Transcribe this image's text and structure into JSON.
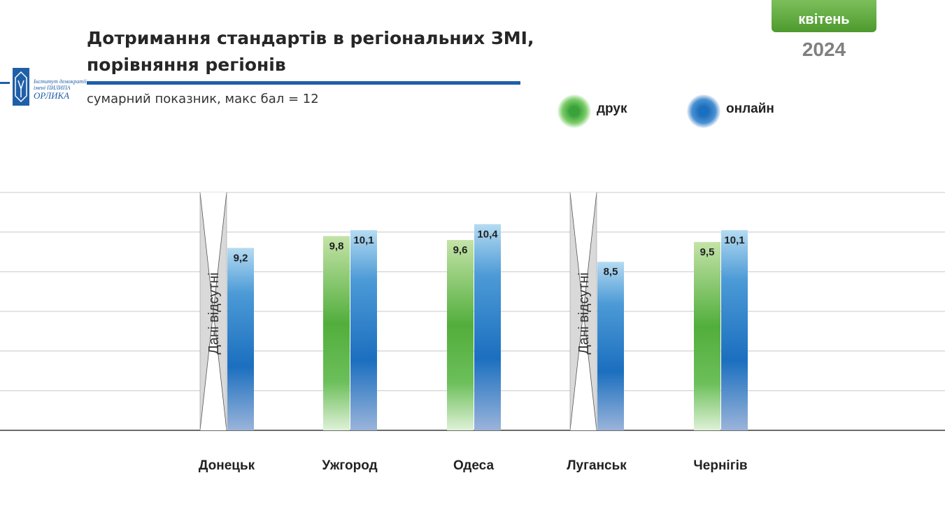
{
  "header": {
    "title_line1": "Дотримання стандартів в регіональних ЗМІ,",
    "title_line2": "порівняння регіонів",
    "subtitle": "сумарний показник, макс бал = 12",
    "month": "квітень",
    "year": "2024"
  },
  "logo": {
    "line1": "Інститут демократії",
    "line2": "імені ПИЛИПА",
    "line3": "ОРЛИКА"
  },
  "colors": {
    "accent_blue": "#1f5fa8",
    "print_green": "#4fae3c",
    "online_blue": "#1b6fbf",
    "badge_green": "#5fa93f",
    "nodata_gray": "#d9d9d9"
  },
  "chart_data": {
    "type": "bar",
    "categories": [
      "Донецьк",
      "Ужгород",
      "Одеса",
      "Луганськ",
      "Чернігів"
    ],
    "series": [
      {
        "name": "друк",
        "values": [
          null,
          9.8,
          9.6,
          null,
          9.5
        ],
        "labels": [
          "",
          "9,8",
          "9,6",
          "",
          "9,5"
        ]
      },
      {
        "name": "онлайн",
        "values": [
          9.2,
          10.1,
          10.4,
          8.5,
          10.1
        ],
        "labels": [
          "9,2",
          "10,1",
          "10,4",
          "8,5",
          "10,1"
        ]
      }
    ],
    "missing_note": "Дані відсутні",
    "ylim": [
      0,
      12
    ],
    "grid": true,
    "legend_position": "top-right"
  }
}
